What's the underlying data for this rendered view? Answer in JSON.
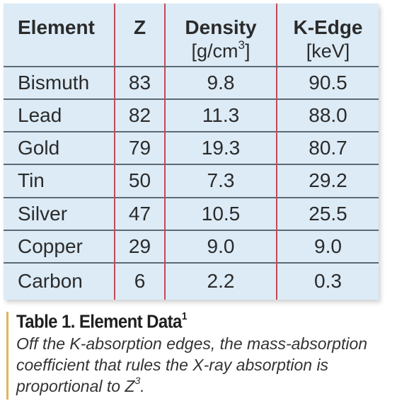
{
  "table": {
    "headers": {
      "element": "Element",
      "z": "Z",
      "density": "Density",
      "density_unit_pre": "[g/cm",
      "density_unit_sup": "3",
      "density_unit_post": "]",
      "kedge": "K-Edge",
      "kedge_unit": "[keV]"
    },
    "rows": [
      {
        "element": "Bismuth",
        "z": "83",
        "density": "9.8",
        "kedge": "90.5"
      },
      {
        "element": "Lead",
        "z": "82",
        "density": "11.3",
        "kedge": "88.0"
      },
      {
        "element": "Gold",
        "z": "79",
        "density": "19.3",
        "kedge": "80.7"
      },
      {
        "element": "Tin",
        "z": "50",
        "density": "7.3",
        "kedge": "29.2"
      },
      {
        "element": "Silver",
        "z": "47",
        "density": "10.5",
        "kedge": "25.5"
      },
      {
        "element": "Copper",
        "z": "29",
        "density": "9.0",
        "kedge": "9.0"
      },
      {
        "element": "Carbon",
        "z": "6",
        "density": "2.2",
        "kedge": "0.3"
      }
    ]
  },
  "caption": {
    "title": "Table 1. Element Data",
    "title_footnote": "1",
    "text": "Off the K-absorption edges, the mass-absorption coefficient that rules the X-ray absorption is proportional to Z",
    "text_sup": "3",
    "text_end": "."
  },
  "colors": {
    "table_background": "#dcebf6",
    "vertical_rule": "#c24a56",
    "horizontal_rule": "#5b6a75",
    "caption_accent": "#e2b45a"
  }
}
